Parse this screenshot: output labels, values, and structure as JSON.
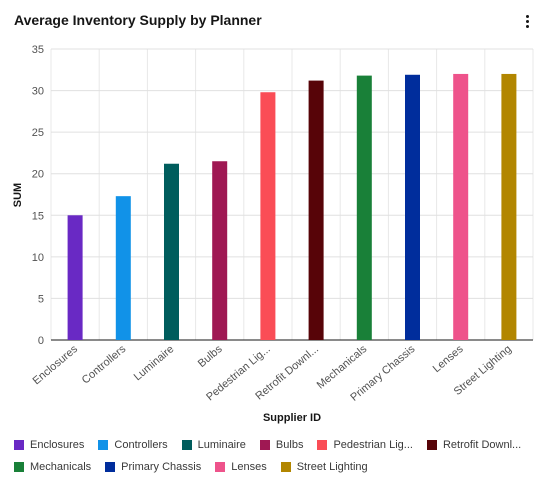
{
  "title": "Average Inventory Supply by Planner",
  "menu_icon": "overflow-menu-vertical-icon",
  "chart_data": {
    "type": "bar",
    "title": "Average Inventory Supply by Planner",
    "xlabel": "Supplier ID",
    "ylabel": "SUM",
    "ylim": [
      0,
      35
    ],
    "yticks": [
      0,
      5,
      10,
      15,
      20,
      25,
      30,
      35
    ],
    "grid": true,
    "legend_position": "bottom",
    "categories": [
      "Enclosures",
      "Controllers",
      "Luminaire",
      "Bulbs",
      "Pedestrian Lig...",
      "Retrofit Downl...",
      "Mechanicals",
      "Primary Chassis",
      "Lenses",
      "Street Lighting"
    ],
    "values": [
      15.0,
      17.3,
      21.2,
      21.5,
      29.8,
      31.2,
      31.8,
      31.9,
      32.0,
      32.0
    ],
    "colors": [
      "#6929c4",
      "#1192e8",
      "#005d5d",
      "#9f1853",
      "#fa4d56",
      "#570408",
      "#198038",
      "#002d9c",
      "#ee538b",
      "#b28600"
    ]
  },
  "legend": [
    {
      "label": "Enclosures",
      "color": "#6929c4"
    },
    {
      "label": "Controllers",
      "color": "#1192e8"
    },
    {
      "label": "Luminaire",
      "color": "#005d5d"
    },
    {
      "label": "Bulbs",
      "color": "#9f1853"
    },
    {
      "label": "Pedestrian Lig...",
      "color": "#fa4d56"
    },
    {
      "label": "Retrofit Downl...",
      "color": "#570408"
    },
    {
      "label": "Mechanicals",
      "color": "#198038"
    },
    {
      "label": "Primary Chassis",
      "color": "#002d9c"
    },
    {
      "label": "Lenses",
      "color": "#ee538b"
    },
    {
      "label": "Street Lighting",
      "color": "#b28600"
    }
  ]
}
